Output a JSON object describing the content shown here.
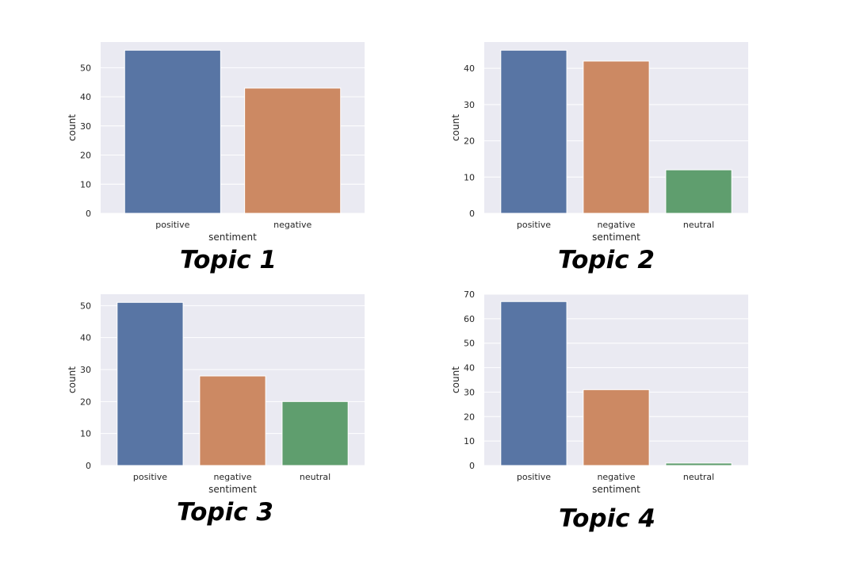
{
  "chart_data": [
    {
      "type": "bar",
      "title": "Topic 1",
      "categories": [
        "positive",
        "negative"
      ],
      "values": [
        56,
        43
      ],
      "colors": [
        "#5875a4",
        "#cc8963"
      ],
      "xlabel": "sentiment",
      "ylabel": "count",
      "ylim": [
        0,
        58.8
      ],
      "yticks": [
        0,
        10,
        20,
        30,
        40,
        50
      ],
      "grid": true
    },
    {
      "type": "bar",
      "title": "Topic 2",
      "categories": [
        "positive",
        "negative",
        "neutral"
      ],
      "values": [
        45,
        42,
        12
      ],
      "colors": [
        "#5875a4",
        "#cc8963",
        "#5f9e6e"
      ],
      "xlabel": "sentiment",
      "ylabel": "count",
      "ylim": [
        0,
        47.25
      ],
      "yticks": [
        0,
        10,
        20,
        30,
        40
      ],
      "grid": true
    },
    {
      "type": "bar",
      "title": "Topic 3",
      "categories": [
        "positive",
        "negative",
        "neutral"
      ],
      "values": [
        51,
        28,
        20
      ],
      "colors": [
        "#5875a4",
        "#cc8963",
        "#5f9e6e"
      ],
      "xlabel": "sentiment",
      "ylabel": "count",
      "ylim": [
        0,
        53.55
      ],
      "yticks": [
        0,
        10,
        20,
        30,
        40,
        50
      ],
      "grid": true
    },
    {
      "type": "bar",
      "title": "Topic 4",
      "categories": [
        "positive",
        "negative",
        "neutral"
      ],
      "values": [
        67,
        31,
        1
      ],
      "colors": [
        "#5875a4",
        "#cc8963",
        "#5f9e6e"
      ],
      "xlabel": "sentiment",
      "ylabel": "count",
      "ylim": [
        0,
        70
      ],
      "yticks": [
        0,
        10,
        20,
        30,
        40,
        50,
        60,
        70
      ],
      "grid": true
    }
  ]
}
